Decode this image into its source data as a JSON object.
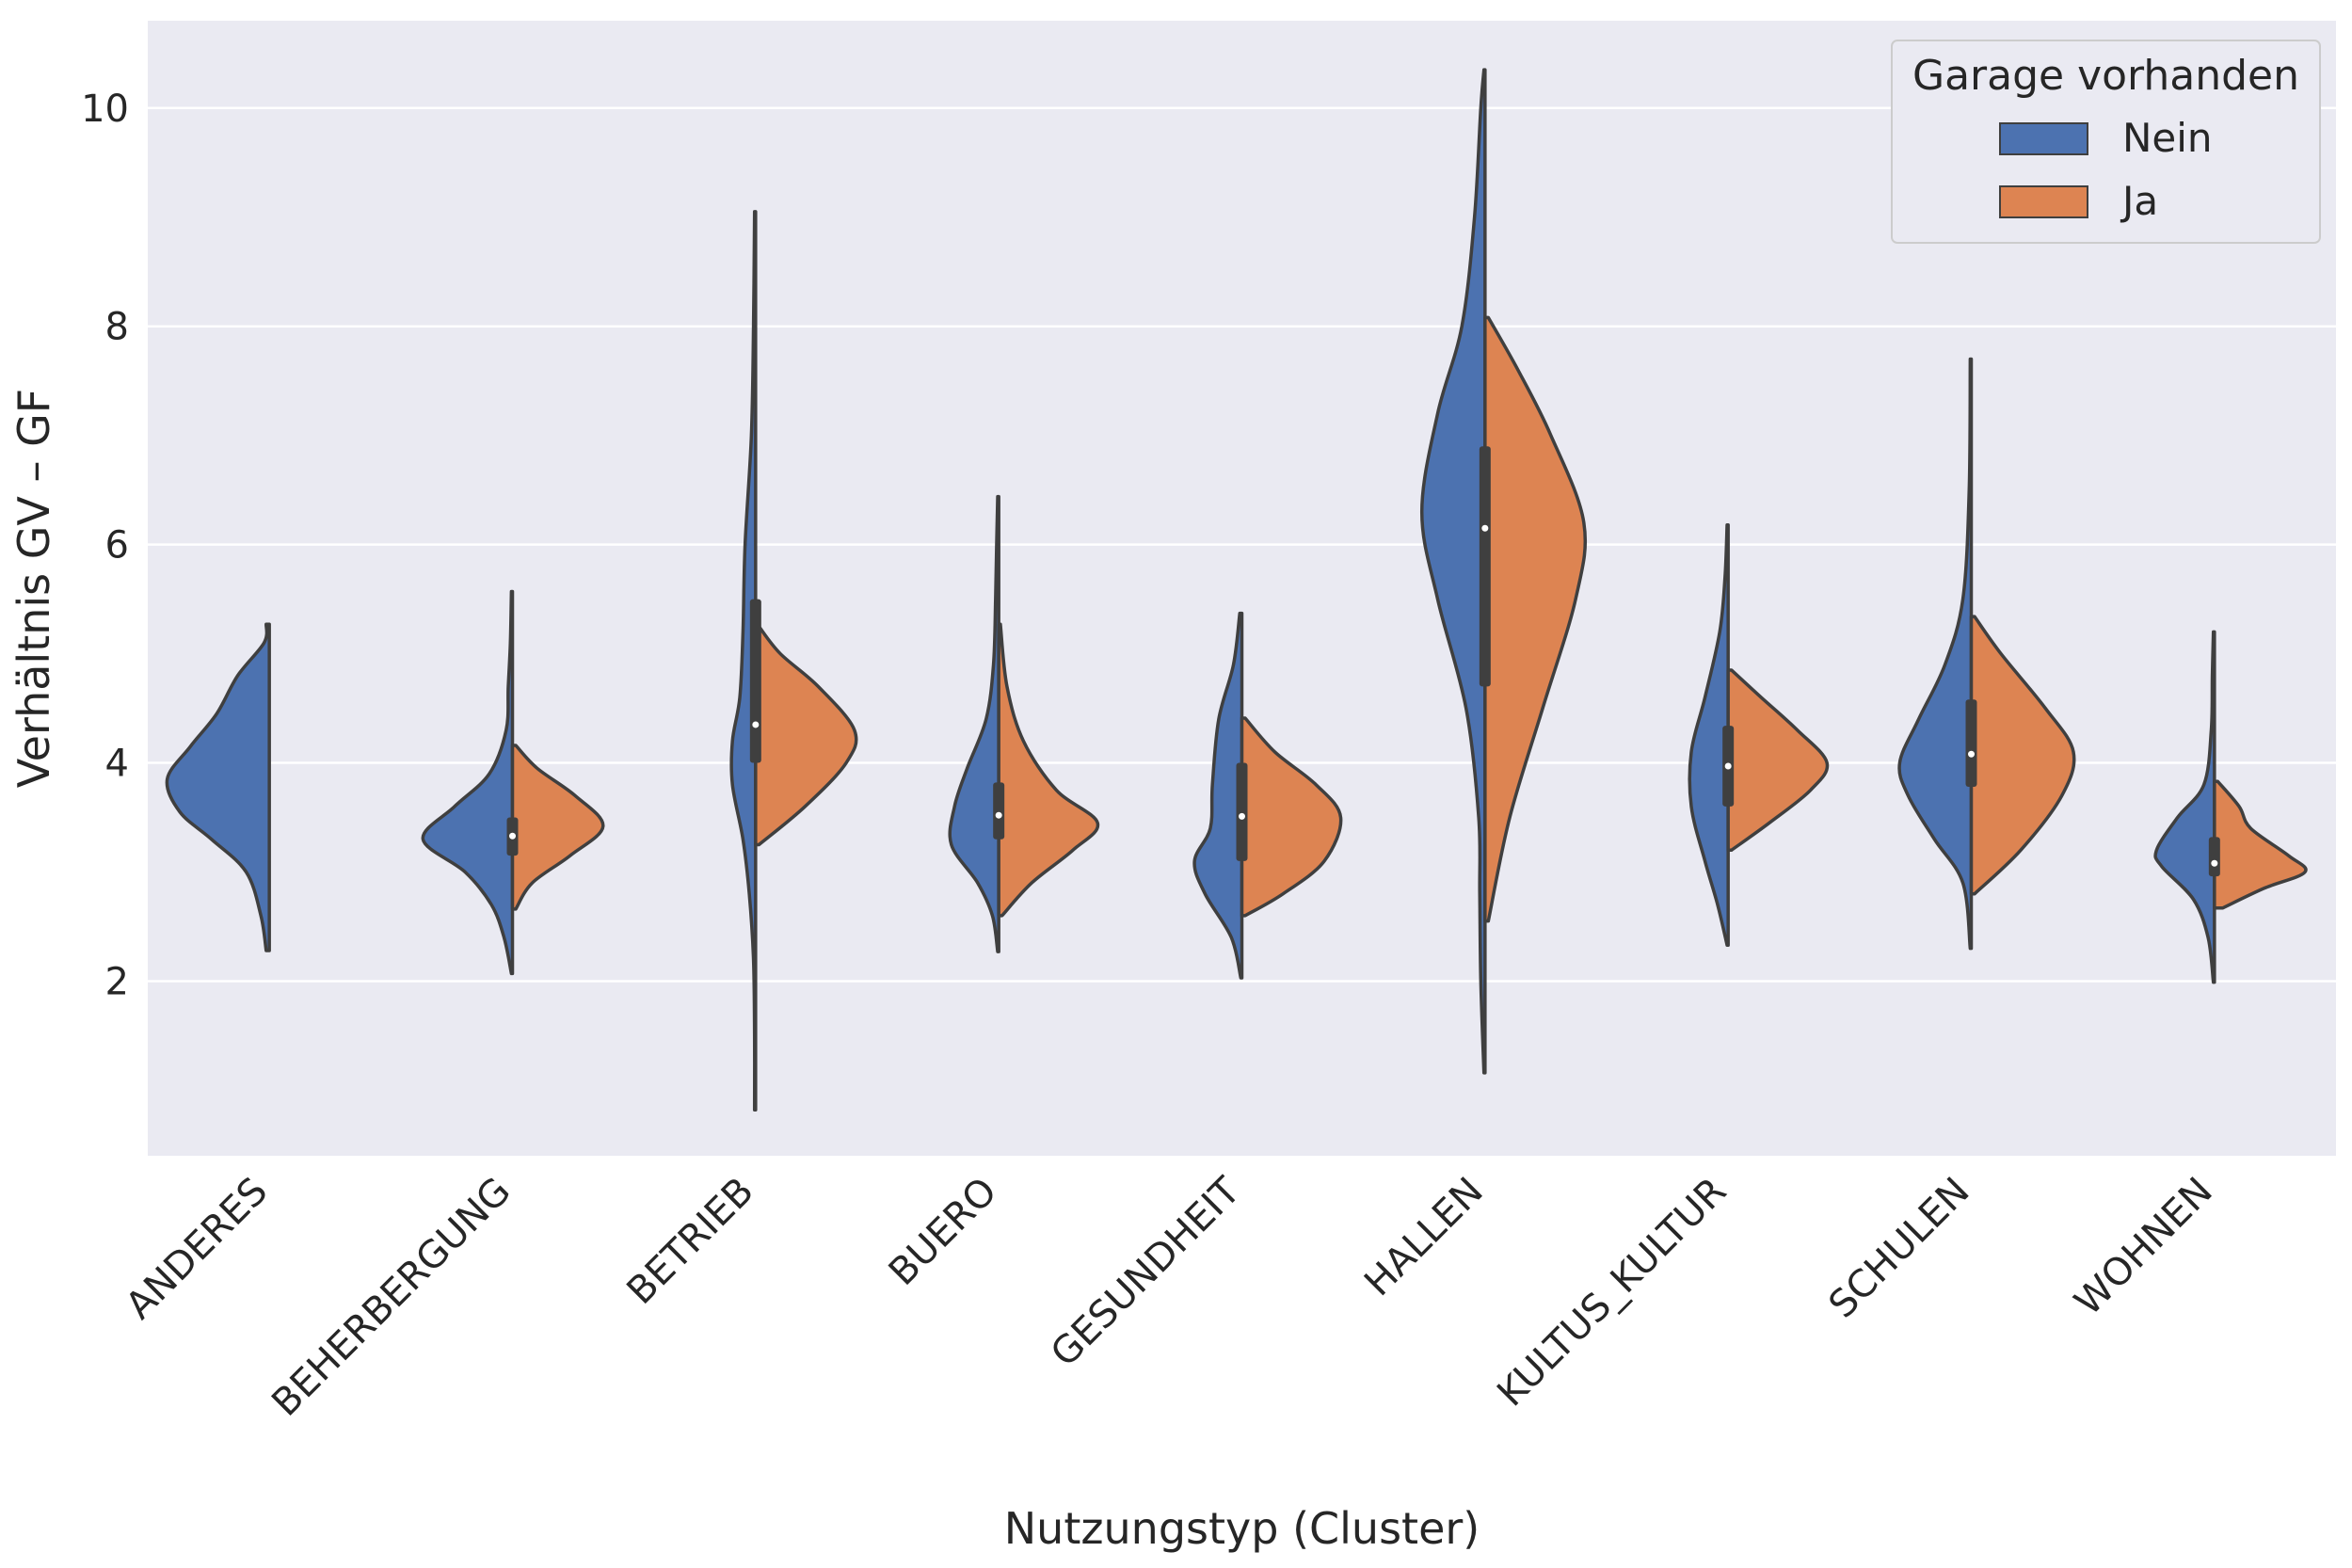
{
  "chart_data": {
    "type": "violin",
    "split": true,
    "xlabel": "Nutzungstyp (Cluster)",
    "ylabel": "Verhältnis GV – GF",
    "ylim": [
      0.4,
      10.8
    ],
    "yticks": [
      2,
      4,
      6,
      8,
      10
    ],
    "grid": true,
    "categories": [
      "ANDERES",
      "BEHERBERGUNG",
      "BETRIEB",
      "BUERO",
      "GESUNDHEIT",
      "HALLEN",
      "KULTUS_KULTUR",
      "SCHULEN",
      "WOHNEN"
    ],
    "legend": {
      "title": "Garage vorhanden",
      "position": "top-right"
    },
    "series": [
      {
        "name": "Nein",
        "color": "#4c72b0",
        "violins": [
          {
            "min": 2.28,
            "max": 5.27,
            "profile": [
              [
                2.28,
                0.03
              ],
              [
                2.6,
                0.08
              ],
              [
                3.0,
                0.22
              ],
              [
                3.3,
                0.55
              ],
              [
                3.55,
                0.85
              ],
              [
                3.85,
                0.97
              ],
              [
                4.15,
                0.75
              ],
              [
                4.45,
                0.5
              ],
              [
                4.8,
                0.3
              ],
              [
                5.1,
                0.05
              ],
              [
                5.27,
                0.03
              ]
            ]
          },
          {
            "min": 2.07,
            "max": 5.57,
            "profile": [
              [
                2.07,
                0.01
              ],
              [
                2.4,
                0.08
              ],
              [
                2.7,
                0.2
              ],
              [
                3.0,
                0.45
              ],
              [
                3.3,
                0.85
              ],
              [
                3.6,
                0.55
              ],
              [
                3.9,
                0.22
              ],
              [
                4.3,
                0.06
              ],
              [
                4.7,
                0.04
              ],
              [
                5.1,
                0.02
              ],
              [
                5.57,
                0.01
              ]
            ]
          },
          {
            "min": 0.82,
            "max": 9.05,
            "profile": [
              [
                0.82,
                0.01
              ],
              [
                1.5,
                0.01
              ],
              [
                2.2,
                0.02
              ],
              [
                2.8,
                0.06
              ],
              [
                3.3,
                0.12
              ],
              [
                3.8,
                0.22
              ],
              [
                4.2,
                0.22
              ],
              [
                4.6,
                0.15
              ],
              [
                5.2,
                0.12
              ],
              [
                6.0,
                0.1
              ],
              [
                7.0,
                0.04
              ],
              [
                8.0,
                0.02
              ],
              [
                9.05,
                0.01
              ]
            ]
          },
          {
            "min": 2.27,
            "max": 6.44,
            "profile": [
              [
                2.27,
                0.01
              ],
              [
                2.6,
                0.06
              ],
              [
                2.9,
                0.2
              ],
              [
                3.25,
                0.45
              ],
              [
                3.6,
                0.42
              ],
              [
                3.95,
                0.3
              ],
              [
                4.4,
                0.12
              ],
              [
                4.9,
                0.05
              ],
              [
                5.5,
                0.03
              ],
              [
                6.0,
                0.02
              ],
              [
                6.44,
                0.01
              ]
            ]
          },
          {
            "min": 2.03,
            "max": 5.37,
            "profile": [
              [
                2.03,
                0.01
              ],
              [
                2.4,
                0.1
              ],
              [
                2.8,
                0.35
              ],
              [
                3.1,
                0.45
              ],
              [
                3.4,
                0.3
              ],
              [
                3.8,
                0.28
              ],
              [
                4.4,
                0.22
              ],
              [
                4.9,
                0.08
              ],
              [
                5.37,
                0.02
              ]
            ]
          },
          {
            "min": 1.16,
            "max": 10.35,
            "profile": [
              [
                1.16,
                0.01
              ],
              [
                2.0,
                0.04
              ],
              [
                2.8,
                0.05
              ],
              [
                3.5,
                0.06
              ],
              [
                4.5,
                0.18
              ],
              [
                5.5,
                0.45
              ],
              [
                6.3,
                0.6
              ],
              [
                7.2,
                0.45
              ],
              [
                8.0,
                0.22
              ],
              [
                9.0,
                0.1
              ],
              [
                10.0,
                0.04
              ],
              [
                10.35,
                0.01
              ]
            ]
          },
          {
            "min": 2.33,
            "max": 6.18,
            "profile": [
              [
                2.33,
                0.01
              ],
              [
                2.7,
                0.1
              ],
              [
                3.1,
                0.22
              ],
              [
                3.6,
                0.35
              ],
              [
                4.1,
                0.35
              ],
              [
                4.6,
                0.22
              ],
              [
                5.2,
                0.08
              ],
              [
                5.7,
                0.03
              ],
              [
                6.18,
                0.01
              ]
            ]
          },
          {
            "min": 2.3,
            "max": 7.7,
            "profile": [
              [
                2.3,
                0.01
              ],
              [
                2.9,
                0.08
              ],
              [
                3.3,
                0.35
              ],
              [
                3.7,
                0.6
              ],
              [
                4.0,
                0.68
              ],
              [
                4.4,
                0.5
              ],
              [
                4.9,
                0.25
              ],
              [
                5.5,
                0.08
              ],
              [
                6.5,
                0.02
              ],
              [
                7.7,
                0.01
              ]
            ]
          },
          {
            "min": 1.99,
            "max": 5.2,
            "profile": [
              [
                1.99,
                0.01
              ],
              [
                2.4,
                0.06
              ],
              [
                2.75,
                0.2
              ],
              [
                3.05,
                0.5
              ],
              [
                3.2,
                0.55
              ],
              [
                3.5,
                0.35
              ],
              [
                3.8,
                0.1
              ],
              [
                4.3,
                0.03
              ],
              [
                4.8,
                0.02
              ],
              [
                5.2,
                0.01
              ]
            ]
          }
        ],
        "box": [
          {
            "q1": 0,
            "median": 0,
            "q3": 0,
            "show": false
          },
          {
            "q1": 3.15,
            "median": 3.33,
            "q3": 3.5,
            "show": true
          },
          {
            "q1": 4.0,
            "median": 4.35,
            "q3": 5.5,
            "show": true
          },
          {
            "q1": 3.3,
            "median": 3.52,
            "q3": 3.82,
            "show": true
          },
          {
            "q1": 3.1,
            "median": 3.51,
            "q3": 4.0,
            "show": true
          },
          {
            "q1": 4.7,
            "median": 6.15,
            "q3": 6.9,
            "show": true
          },
          {
            "q1": 3.6,
            "median": 3.97,
            "q3": 4.34,
            "show": true
          },
          {
            "q1": 3.78,
            "median": 4.08,
            "q3": 4.58,
            "show": true
          },
          {
            "q1": 2.96,
            "median": 3.08,
            "q3": 3.32,
            "show": true
          }
        ]
      },
      {
        "name": "Ja",
        "color": "#dd8452",
        "violins": [
          null,
          {
            "min": 2.66,
            "max": 4.16,
            "profile": [
              [
                2.66,
                0.02
              ],
              [
                2.9,
                0.12
              ],
              [
                3.15,
                0.35
              ],
              [
                3.42,
                0.55
              ],
              [
                3.7,
                0.38
              ],
              [
                3.95,
                0.15
              ],
              [
                4.16,
                0.02
              ]
            ]
          },
          {
            "min": 3.25,
            "max": 5.25,
            "profile": [
              [
                3.25,
                0.02
              ],
              [
                3.6,
                0.3
              ],
              [
                4.0,
                0.55
              ],
              [
                4.3,
                0.6
              ],
              [
                4.7,
                0.38
              ],
              [
                5.0,
                0.15
              ],
              [
                5.25,
                0.02
              ]
            ]
          },
          {
            "min": 2.6,
            "max": 5.27,
            "profile": [
              [
                2.6,
                0.02
              ],
              [
                2.9,
                0.2
              ],
              [
                3.2,
                0.45
              ],
              [
                3.45,
                0.6
              ],
              [
                3.75,
                0.35
              ],
              [
                4.2,
                0.15
              ],
              [
                4.7,
                0.05
              ],
              [
                5.27,
                0.01
              ]
            ]
          },
          {
            "min": 2.6,
            "max": 4.41,
            "profile": [
              [
                2.6,
                0.02
              ],
              [
                2.8,
                0.25
              ],
              [
                3.1,
                0.5
              ],
              [
                3.5,
                0.6
              ],
              [
                3.8,
                0.45
              ],
              [
                4.1,
                0.2
              ],
              [
                4.41,
                0.02
              ]
            ]
          },
          {
            "min": 2.55,
            "max": 8.08,
            "profile": [
              [
                2.55,
                0.02
              ],
              [
                3.5,
                0.15
              ],
              [
                4.5,
                0.35
              ],
              [
                5.5,
                0.55
              ],
              [
                6.2,
                0.6
              ],
              [
                7.0,
                0.4
              ],
              [
                7.6,
                0.2
              ],
              [
                8.08,
                0.02
              ]
            ]
          },
          {
            "min": 3.2,
            "max": 4.85,
            "profile": [
              [
                3.2,
                0.02
              ],
              [
                3.45,
                0.25
              ],
              [
                3.75,
                0.5
              ],
              [
                4.0,
                0.6
              ],
              [
                4.3,
                0.42
              ],
              [
                4.6,
                0.2
              ],
              [
                4.85,
                0.02
              ]
            ]
          },
          {
            "min": 2.8,
            "max": 5.34,
            "profile": [
              [
                2.8,
                0.02
              ],
              [
                3.2,
                0.3
              ],
              [
                3.7,
                0.55
              ],
              [
                4.1,
                0.62
              ],
              [
                4.5,
                0.45
              ],
              [
                5.0,
                0.18
              ],
              [
                5.34,
                0.02
              ]
            ]
          },
          {
            "min": 2.67,
            "max": 3.83,
            "profile": [
              [
                2.67,
                0.05
              ],
              [
                2.85,
                0.3
              ],
              [
                3.0,
                0.55
              ],
              [
                3.15,
                0.45
              ],
              [
                3.4,
                0.22
              ],
              [
                3.6,
                0.15
              ],
              [
                3.83,
                0.02
              ]
            ]
          }
        ]
      }
    ]
  }
}
